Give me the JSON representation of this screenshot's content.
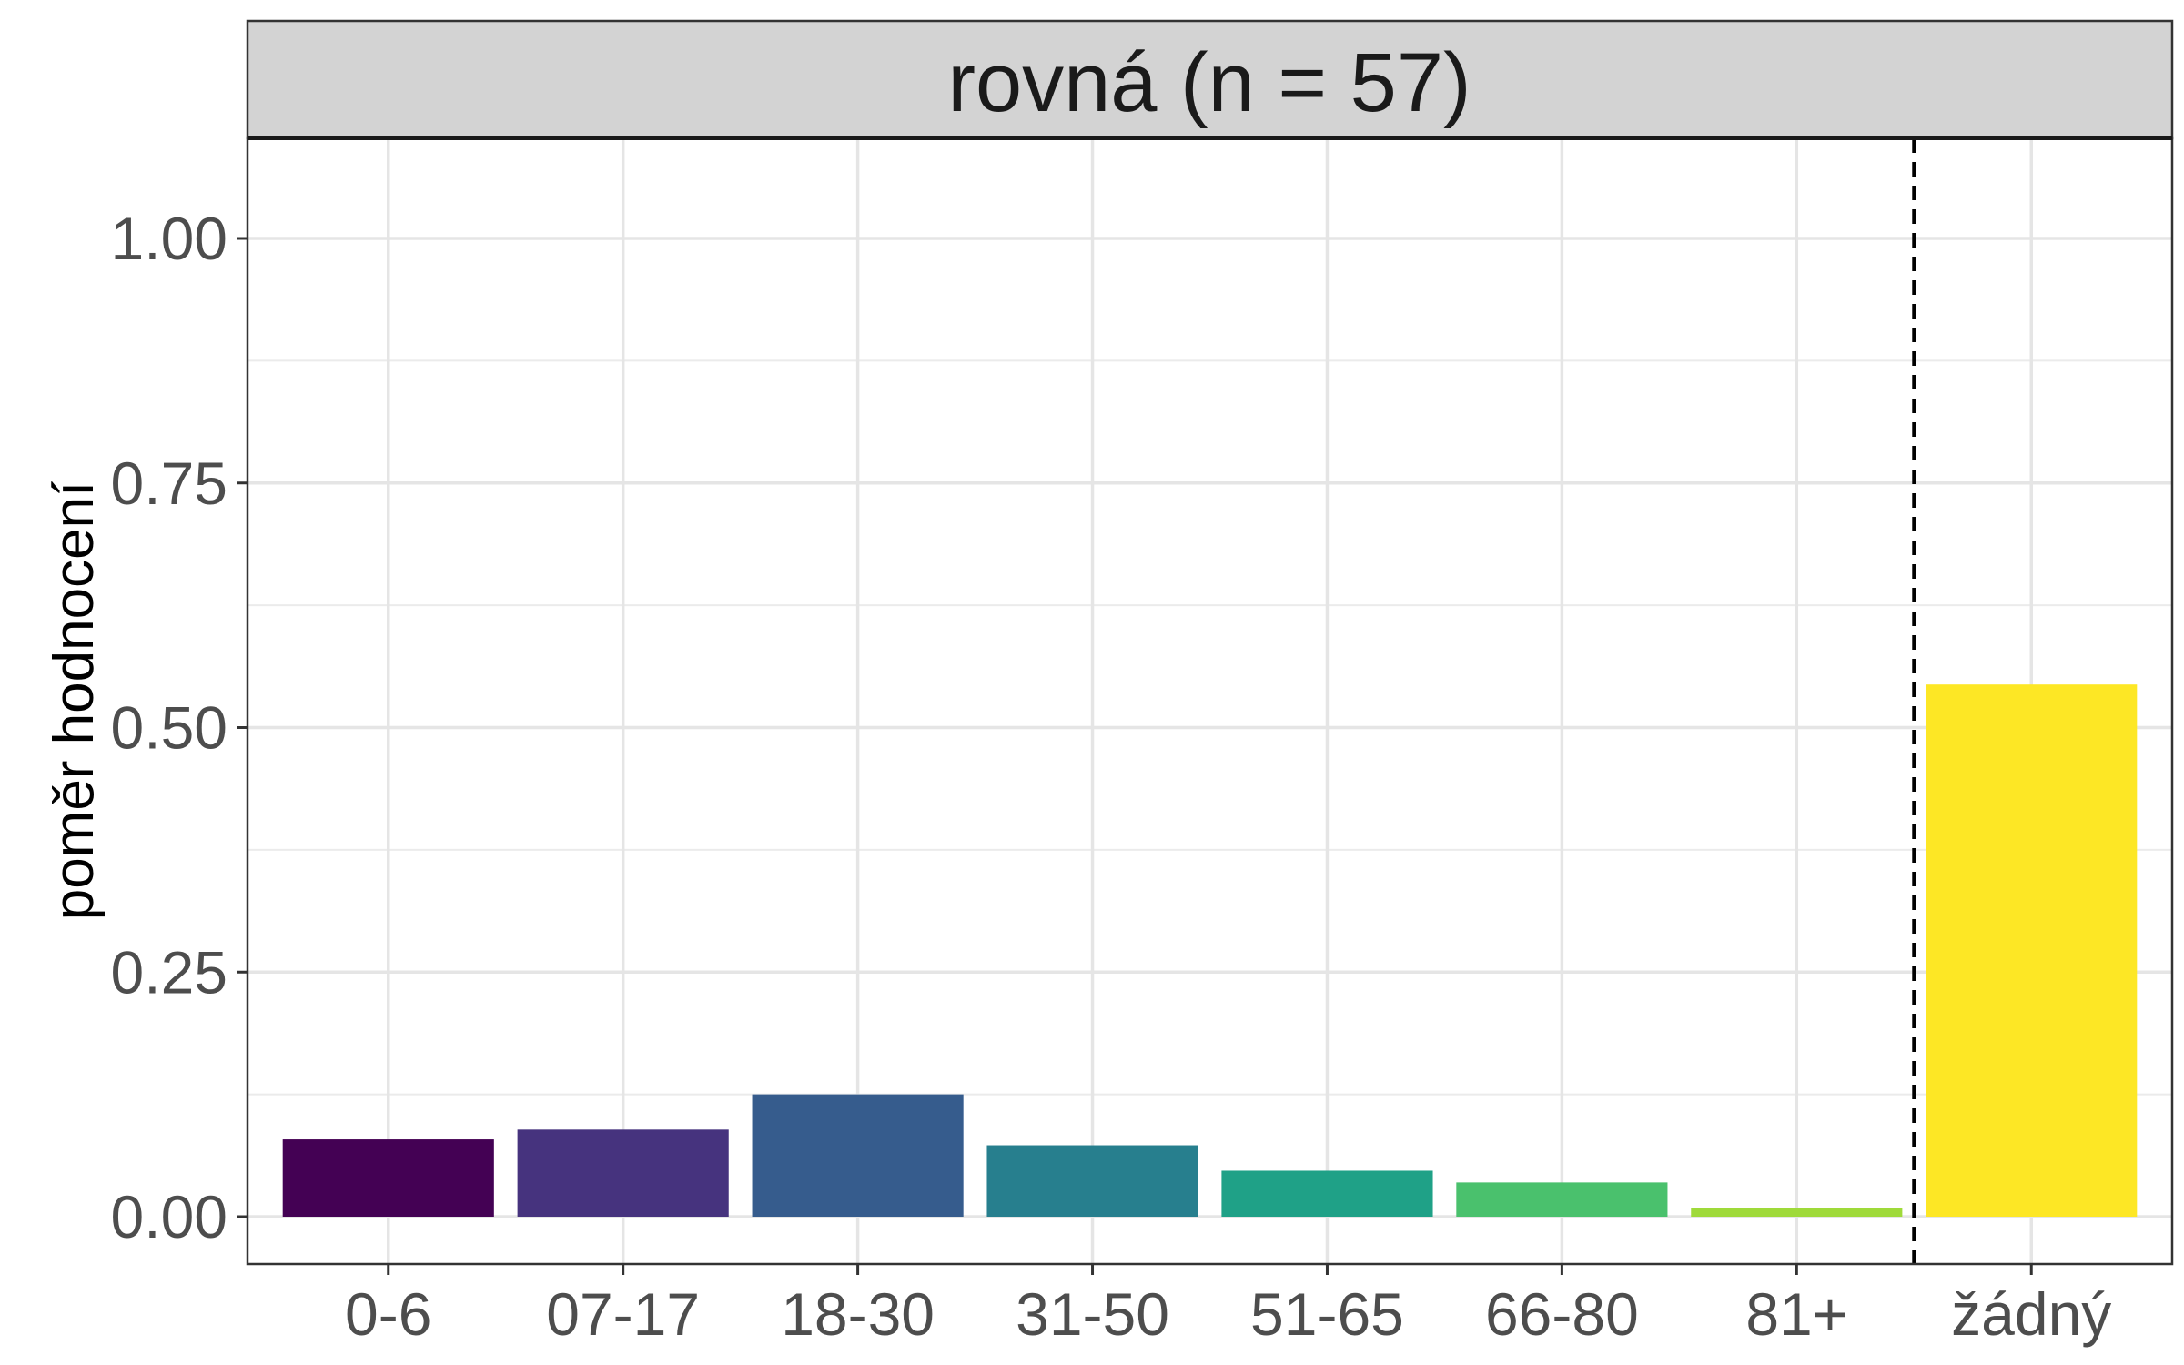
{
  "chart_data": {
    "type": "bar",
    "panel_title": "rovná (n = 57)",
    "ylabel": "poměr hodnocení",
    "xlabel": "",
    "categories": [
      "0-6",
      "07-17",
      "18-30",
      "31-50",
      "51-65",
      "66-80",
      "81+",
      "žádný"
    ],
    "values": [
      0.079,
      0.089,
      0.125,
      0.073,
      0.047,
      0.035,
      0.009,
      0.544
    ],
    "colors": [
      "#440154",
      "#46337E",
      "#365C8D",
      "#277F8E",
      "#1FA187",
      "#4AC16D",
      "#9FDA3A",
      "#FDE725"
    ],
    "ylim": [
      -0.05,
      1.1
    ],
    "yticks": [
      0.0,
      0.25,
      0.5,
      0.75,
      1.0
    ],
    "ytick_labels": [
      "0.00",
      "0.25",
      "0.50",
      "0.75",
      "1.00"
    ],
    "reference_line": {
      "between": [
        "81+",
        "žádný"
      ],
      "style": "dashed"
    },
    "grid": true,
    "legend": "none"
  }
}
